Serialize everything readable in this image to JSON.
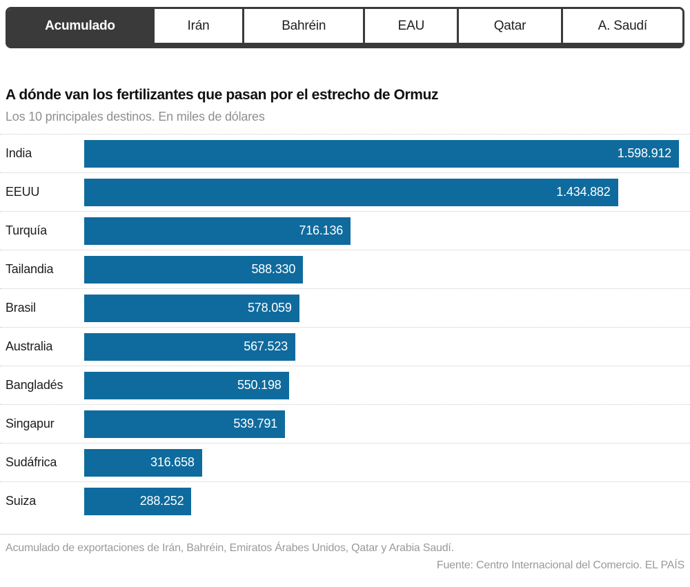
{
  "tabs": {
    "items": [
      {
        "label": "Acumulado",
        "selected": true
      },
      {
        "label": "Irán",
        "selected": false
      },
      {
        "label": "Bahréin",
        "selected": false
      },
      {
        "label": "EAU",
        "selected": false
      },
      {
        "label": "Qatar",
        "selected": false
      },
      {
        "label": "A. Saudí",
        "selected": false
      }
    ]
  },
  "header": {
    "title": "A dónde van los fertilizantes que pasan por el estrecho de Ormuz",
    "subtitle": "Los 10 principales destinos. En miles de dólares"
  },
  "chart_data": {
    "type": "bar",
    "orientation": "horizontal",
    "title": "A dónde van los fertilizantes que pasan por el estrecho de Ormuz",
    "subtitle": "Los 10 principales destinos. En miles de dólares",
    "unit": "miles de dólares",
    "categories": [
      "India",
      "EEUU",
      "Turquía",
      "Tailandia",
      "Brasil",
      "Australia",
      "Bangladés",
      "Singapur",
      "Sudáfrica",
      "Suiza"
    ],
    "values": [
      1598912,
      1434882,
      716136,
      588330,
      578059,
      567523,
      550198,
      539791,
      316658,
      288252
    ],
    "value_labels": [
      "1.598.912",
      "1.434.882",
      "716.136",
      "588.330",
      "578.059",
      "567.523",
      "550.198",
      "539.791",
      "316.658",
      "288.252"
    ],
    "xlim": [
      0,
      1598912
    ],
    "grid": false,
    "legend": false,
    "value_label_position": "inside-end",
    "bar_color": "#0f6b9d"
  },
  "footer": {
    "note": "Acumulado de exportaciones de Irán, Bahréin, Emiratos Árabes Unidos, Qatar y Arabia Saudí.",
    "source": "Fuente: Centro Internacional del Comercio. EL PAÍS"
  },
  "colors": {
    "bar": "#0f6b9d",
    "tab_active_bg": "#3a3a3a",
    "tab_active_text": "#ffffff",
    "tab_text": "#1f1f1f",
    "muted_text": "#9a9a9a",
    "separator_dotted": "#c9c9c9",
    "footer_rule": "#d6d6d6"
  }
}
